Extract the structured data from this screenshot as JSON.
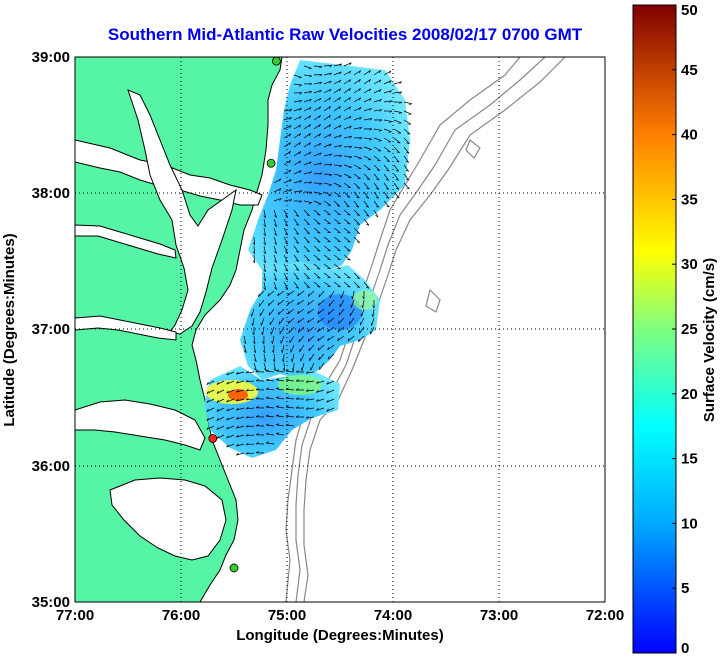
{
  "chart_data": {
    "type": "map",
    "title": "Southern Mid-Atlantic Raw Velocities 2008/02/17 0700 GMT",
    "xlabel": "Longitude (Degrees:Minutes)",
    "ylabel": "Latitude (Degrees:Minutes)",
    "x_ticks": [
      "77:00",
      "76:00",
      "75:00",
      "74:00",
      "73:00",
      "72:00"
    ],
    "y_ticks": [
      "39:00",
      "38:00",
      "37:00",
      "36:00",
      "35:00"
    ],
    "xlim": [
      -77,
      -72
    ],
    "ylim": [
      35,
      39
    ],
    "grid": true,
    "colorbar": {
      "label": "Surface Velocity (cm/s)",
      "ticks": [
        "50",
        "45",
        "40",
        "35",
        "30",
        "25",
        "20",
        "15",
        "10",
        "5",
        "0"
      ],
      "range": [
        0,
        50
      ],
      "colormap": "jet"
    },
    "stations": [
      {
        "lon": -75.1,
        "lat": 38.97,
        "color": "#33cc33"
      },
      {
        "lon": -75.15,
        "lat": 38.22,
        "color": "#33cc33"
      },
      {
        "lon": -75.7,
        "lat": 36.2,
        "color": "#ff2222"
      },
      {
        "lon": -75.5,
        "lat": 35.25,
        "color": "#33cc33"
      }
    ],
    "land_color": "#55f5a5"
  }
}
